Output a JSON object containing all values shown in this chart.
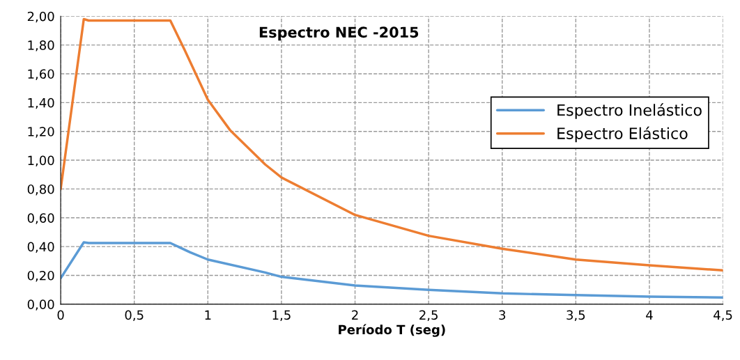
{
  "chart_data": {
    "type": "line",
    "title": "Espectro NEC -2015",
    "xlabel": "Período T (seg)",
    "xlim": [
      0,
      4.5
    ],
    "ylim": [
      0,
      2.0
    ],
    "xticks": [
      0,
      {
        "value": 0.5,
        "label": "0,5"
      },
      1,
      {
        "value": 1.5,
        "label": "1,5"
      },
      2,
      {
        "value": 2.5,
        "label": "2,5"
      },
      3,
      {
        "value": 3.5,
        "label": "3,5"
      },
      4,
      {
        "value": 4.5,
        "label": "4,5"
      }
    ],
    "yticks": [
      {
        "value": 0,
        "label": "0,00"
      },
      {
        "value": 0.2,
        "label": "0,20"
      },
      {
        "value": 0.4,
        "label": "0,40"
      },
      {
        "value": 0.6,
        "label": "0,60"
      },
      {
        "value": 0.8,
        "label": "0,80"
      },
      {
        "value": 1.0,
        "label": "1,00"
      },
      {
        "value": 1.2,
        "label": "1,20"
      },
      {
        "value": 1.4,
        "label": "1,40"
      },
      {
        "value": 1.6,
        "label": "1,60"
      },
      {
        "value": 1.8,
        "label": "1,80"
      },
      {
        "value": 2.0,
        "label": "2,00"
      }
    ],
    "grid": true,
    "legend": "right",
    "marker": "none",
    "line_style": "solid",
    "series": [
      {
        "name": "Espectro Inelástico",
        "color": "#5b9bd5",
        "x": [
          0,
          0.157,
          0.19,
          0.745,
          0.88,
          1.0,
          1.39,
          1.5,
          2.0,
          2.5,
          3.0,
          3.5,
          4.0,
          4.5
        ],
        "values": [
          0.18,
          0.43,
          0.425,
          0.425,
          0.36,
          0.31,
          0.22,
          0.19,
          0.13,
          0.1,
          0.075,
          0.063,
          0.053,
          0.046
        ]
      },
      {
        "name": "Espectro Elástico",
        "color": "#ed7d31",
        "x": [
          0,
          0.157,
          0.19,
          0.745,
          0.84,
          1.0,
          1.15,
          1.39,
          1.5,
          2.0,
          2.5,
          3.0,
          3.5,
          4.0,
          4.5
        ],
        "values": [
          0.8,
          1.98,
          1.97,
          1.97,
          1.77,
          1.42,
          1.21,
          0.97,
          0.88,
          0.62,
          0.475,
          0.385,
          0.31,
          0.27,
          0.235
        ]
      }
    ]
  }
}
